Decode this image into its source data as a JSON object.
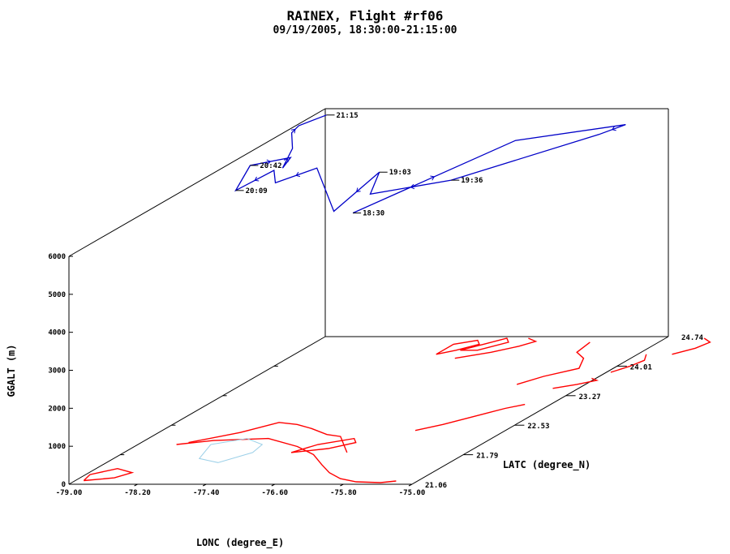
{
  "chart_data": {
    "type": "line",
    "title": "RAINEX, Flight #rf06",
    "subtitle": "09/19/2005, 18:30:00-21:15:00",
    "xlabel": "LONC (degree_E)",
    "ylabel": "LATC (degree_N)",
    "zlabel": "GGALT (m)",
    "x_ticks": [
      "-79.00",
      "-78.20",
      "-77.40",
      "-76.60",
      "-75.80",
      "-75.00"
    ],
    "y_ticks": [
      "21.06",
      "21.79",
      "22.53",
      "23.27",
      "24.01",
      "24.74"
    ],
    "z_ticks": [
      "0",
      "1000",
      "2000",
      "3000",
      "4000",
      "5000",
      "6000"
    ],
    "xlim": [
      -79.0,
      -75.0
    ],
    "ylim": [
      21.06,
      24.74
    ],
    "zlim": [
      0,
      6000
    ],
    "track_color": "#0000c8",
    "coast_color": "#ff0000",
    "lake_color": "#9cd0e8",
    "time_labels": [
      "21:15",
      "18:30",
      "19:36",
      "20:09",
      "20:42",
      "19:03"
    ],
    "series": [
      {
        "values": [
          [
            -76.55,
            22.12,
            6020
          ],
          [
            -76.1,
            23.9,
            6050
          ],
          [
            -75.1,
            24.25,
            6100
          ],
          [
            -75.25,
            24.05,
            6050
          ],
          [
            -76.2,
            23.1,
            5850
          ],
          [
            -76.9,
            22.8,
            5800
          ],
          [
            -77.2,
            23.3,
            5850
          ],
          [
            -77.0,
            22.4,
            5770
          ],
          [
            -78.05,
            23.45,
            5800
          ],
          [
            -78.25,
            23.1,
            5780
          ],
          [
            -78.55,
            23.45,
            5740
          ],
          [
            -78.55,
            22.9,
            5790
          ],
          [
            -78.95,
            23.6,
            5710
          ],
          [
            -78.6,
            23.75,
            5760
          ],
          [
            -78.45,
            23.45,
            5800
          ],
          [
            -78.7,
            23.9,
            5840
          ],
          [
            -78.75,
            23.95,
            6200
          ],
          [
            -78.75,
            24.05,
            6280
          ],
          [
            -78.75,
            24.45,
            6140
          ]
        ]
      }
    ]
  }
}
